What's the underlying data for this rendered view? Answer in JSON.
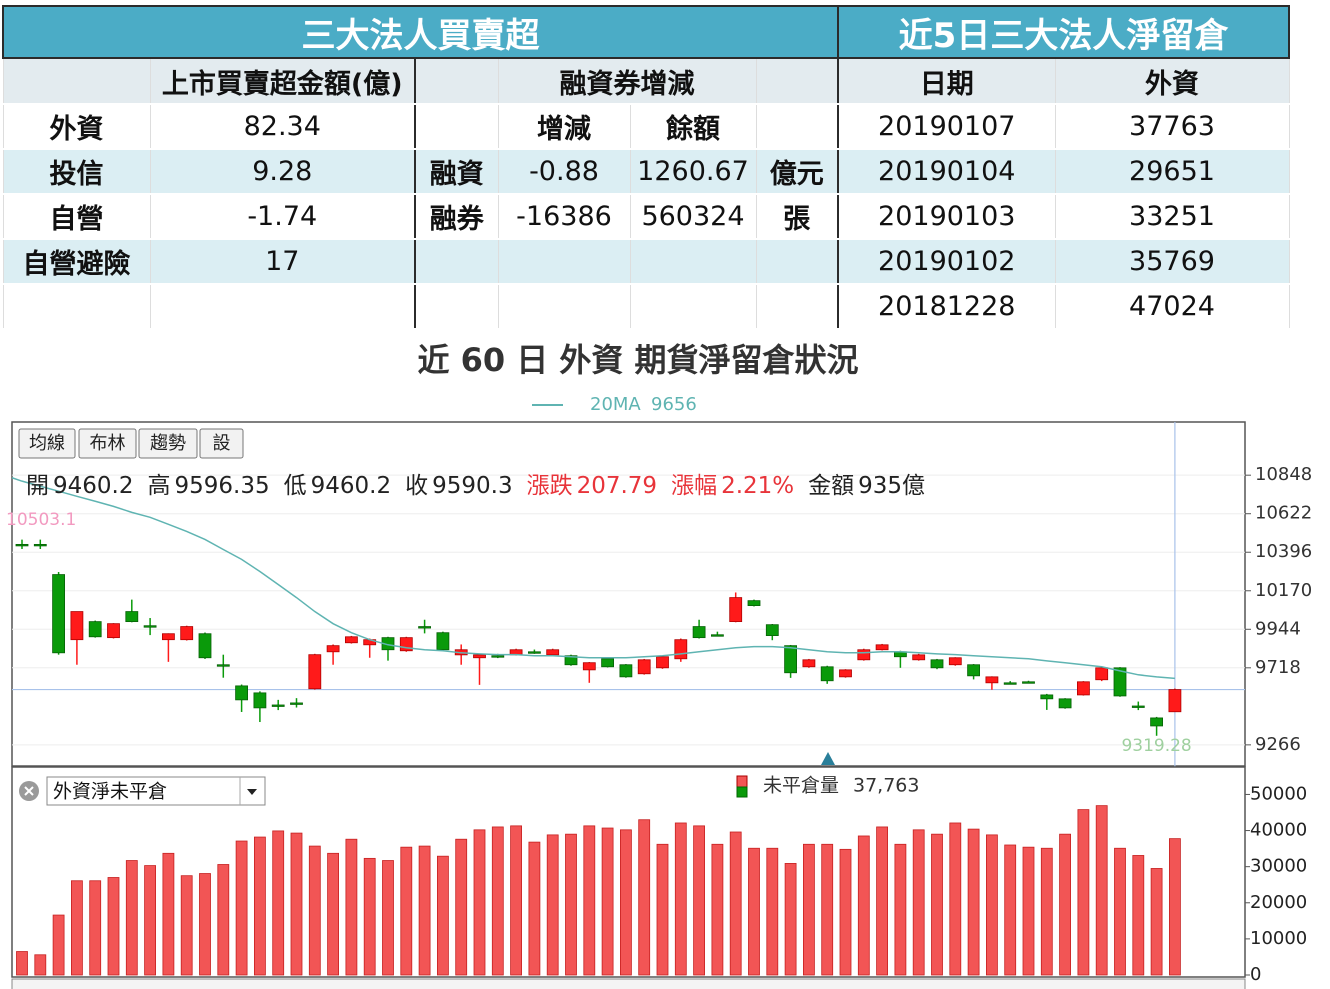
{
  "left_table": {
    "title": "三大法人買賣超",
    "amount_header": "上市買賣超金額(億)",
    "margin_header": "融資券增減",
    "rows": [
      {
        "name": "外資",
        "amount": "82.34"
      },
      {
        "name": "投信",
        "amount": "9.28"
      },
      {
        "name": "自營",
        "amount": "-1.74"
      },
      {
        "name": "自營避險",
        "amount": "17"
      }
    ],
    "margin_columns": [
      "增減",
      "餘額"
    ],
    "margin_rows": [
      {
        "name": "融資",
        "change": "-0.88",
        "balance": "1260.67",
        "unit": "億元"
      },
      {
        "name": "融券",
        "change": "-16386",
        "balance": "560324",
        "unit": "張"
      }
    ]
  },
  "right_table": {
    "title": "近5日三大法人淨留倉",
    "columns": [
      "日期",
      "外資"
    ],
    "rows": [
      [
        "20190107",
        "37763"
      ],
      [
        "20190104",
        "29651"
      ],
      [
        "20190103",
        "33251"
      ],
      [
        "20190102",
        "35769"
      ],
      [
        "20181228",
        "47024"
      ]
    ]
  },
  "chart_data": [
    {
      "type": "candlestick",
      "title": "近 60 日 外資 期貨淨留倉狀況",
      "buttons": [
        "均線",
        "布林",
        "趨勢",
        "設"
      ],
      "info": [
        {
          "label": "開",
          "value": "9460.2",
          "color": "#222"
        },
        {
          "label": "高",
          "value": "9596.35",
          "color": "#222"
        },
        {
          "label": "低",
          "value": "9460.2",
          "color": "#222"
        },
        {
          "label": "收",
          "value": "9590.3",
          "color": "#222"
        },
        {
          "label": "漲跌",
          "value": "207.79",
          "color": "#e8343a"
        },
        {
          "label": "漲幅",
          "value": "2.21%",
          "color": "#e8343a"
        },
        {
          "label": "金額",
          "value": "935億",
          "color": "#222"
        }
      ],
      "up_color": "#ff1a1a",
      "down_color": "#0a9a0a",
      "ylim": [
        9142,
        11160
      ],
      "yticks": [
        9266,
        9718,
        9944,
        10170,
        10396,
        10622,
        10848
      ],
      "high_annotation": 10503.1,
      "ma": {
        "name": "20MA",
        "color": "#5fb4b2",
        "values": [
          10813,
          10783,
          10754,
          10724,
          10695,
          10665,
          10630,
          10601,
          10560,
          10518,
          10471,
          10412,
          10354,
          10283,
          10207,
          10130,
          10048,
          9977,
          9924,
          9883,
          9853,
          9836,
          9824,
          9818,
          9806,
          9800,
          9795,
          9795,
          9789,
          9789,
          9783,
          9777,
          9777,
          9777,
          9783,
          9789,
          9800,
          9812,
          9824,
          9836,
          9842,
          9842,
          9836,
          9824,
          9812,
          9806,
          9806,
          9812,
          9812,
          9806,
          9800,
          9795,
          9789,
          9783,
          9777,
          9771,
          9759,
          9748,
          9736,
          9724,
          9700,
          9677,
          9665,
          9656
        ]
      },
      "candles": {
        "open": [
          10442,
          10442,
          10265,
          9883,
          9989,
          9895,
          10048,
          9965,
          9883,
          9883,
          9918,
          9736,
          9612,
          9571,
          9500,
          9512,
          9595,
          9812,
          9865,
          9853,
          9895,
          9818,
          9960,
          9924,
          9794,
          9777,
          9789,
          9794,
          9812,
          9794,
          9789,
          9706,
          9771,
          9736,
          9683,
          9718,
          9771,
          9960,
          9912,
          9989,
          10112,
          9971,
          9848,
          9724,
          9724,
          9665,
          9765,
          9824,
          9812,
          9765,
          9765,
          9736,
          9736,
          9630,
          9630,
          9636,
          9559,
          9536,
          9559,
          9648,
          9718,
          9494,
          9424,
          9460.2
        ],
        "high": [
          10470,
          10470,
          10280,
          10048,
          9995,
          9980,
          10118,
          10010,
          9920,
          9965,
          9925,
          9795,
          9620,
          9580,
          9530,
          9540,
          9800,
          9855,
          9905,
          9890,
          9900,
          9900,
          10000,
          9930,
          9855,
          9800,
          9800,
          9830,
          9825,
          9830,
          9795,
          9752,
          9775,
          9740,
          9770,
          9790,
          9890,
          10000,
          9930,
          10160,
          10118,
          9975,
          9852,
          9770,
          9730,
          9710,
          9830,
          9858,
          9818,
          9800,
          9770,
          9780,
          9740,
          9668,
          9640,
          9642,
          9565,
          9540,
          9640,
          9722,
          9722,
          9520,
          9430,
          9596.35
        ],
        "low": [
          10415,
          10415,
          9795,
          9736,
          9895,
          9890,
          9985,
          9910,
          9753,
          9878,
          9770,
          9660,
          9459,
          9400,
          9470,
          9485,
          9590,
          9736,
          9860,
          9777,
          9760,
          9812,
          9920,
          9818,
          9736,
          9618,
          9775,
          9790,
          9800,
          9790,
          9730,
          9630,
          9720,
          9660,
          9678,
          9712,
          9753,
          9890,
          9905,
          9985,
          10078,
          9880,
          9659,
          9718,
          9624,
          9660,
          9760,
          9820,
          9718,
          9760,
          9710,
          9730,
          9650,
          9589,
          9625,
          9630,
          9471,
          9478,
          9555,
          9640,
          9548,
          9470,
          9319.28,
          9460.2
        ],
        "close": [
          10442,
          10442,
          9806,
          10048,
          9900,
          9977,
          9989,
          9965,
          9918,
          9960,
          9777,
          9736,
          9530,
          9483,
          9500,
          9512,
          9795,
          9848,
          9900,
          9883,
          9824,
          9895,
          9960,
          9824,
          9824,
          9794,
          9789,
          9824,
          9812,
          9824,
          9736,
          9748,
          9724,
          9665,
          9765,
          9783,
          9883,
          9895,
          9912,
          10130,
          10083,
          9907,
          9689,
          9765,
          9642,
          9706,
          9824,
          9853,
          9783,
          9794,
          9718,
          9777,
          9671,
          9665,
          9630,
          9636,
          9536,
          9483,
          9636,
          9718,
          9553,
          9494,
          9377,
          9590.3
        ]
      }
    },
    {
      "type": "bar",
      "selector": "外資淨未平倉",
      "ylim": [
        0,
        57600
      ],
      "yticks": [
        0,
        10000,
        20000,
        30000,
        40000,
        50000
      ],
      "series": [
        {
          "name": "未平倉量",
          "last_label": "37,763",
          "color": "#f25555",
          "values": [
            6500,
            5600,
            16600,
            26100,
            26100,
            27000,
            31700,
            30300,
            33700,
            27500,
            28100,
            30600,
            37100,
            38200,
            39900,
            39300,
            35700,
            33700,
            37600,
            32300,
            31700,
            35400,
            35700,
            32900,
            37600,
            40200,
            41000,
            41300,
            36800,
            38800,
            39000,
            41300,
            40700,
            40200,
            43000,
            36200,
            42100,
            41300,
            36200,
            39600,
            35100,
            35100,
            30900,
            36200,
            36200,
            34800,
            38500,
            41000,
            36200,
            40200,
            39000,
            42100,
            40400,
            38800,
            36000,
            35400,
            35100,
            39000,
            45800,
            46900,
            35100,
            33100,
            29500,
            37763
          ]
        }
      ]
    }
  ]
}
